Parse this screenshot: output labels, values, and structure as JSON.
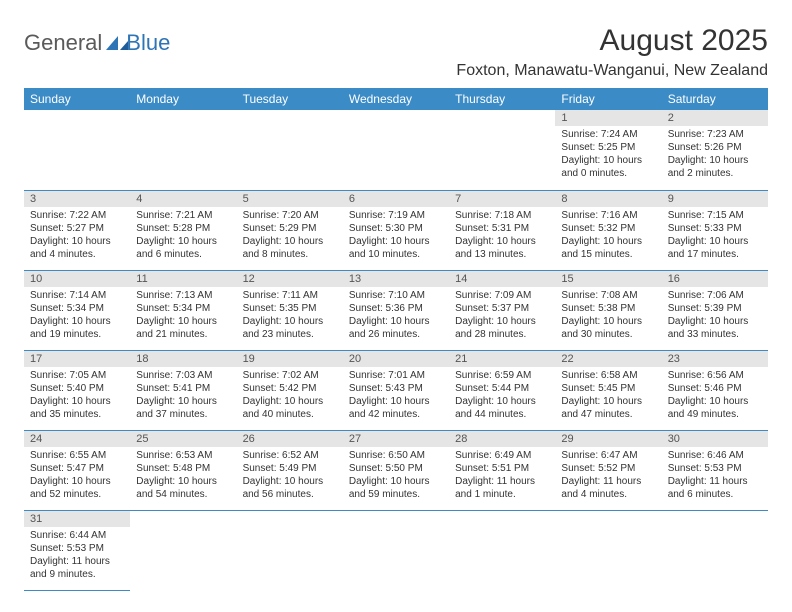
{
  "brand": {
    "part1": "General",
    "part2": "Blue"
  },
  "title": "August 2025",
  "location": "Foxton, Manawatu-Wanganui, New Zealand",
  "colors": {
    "header_bg": "#3b8bc7",
    "header_text": "#ffffff",
    "daynum_bg": "#e5e5e5",
    "rule": "#3b8bc7",
    "text": "#333333",
    "logo_gray": "#5a5a5a",
    "logo_blue": "#2e75b6"
  },
  "weekdays": [
    "Sunday",
    "Monday",
    "Tuesday",
    "Wednesday",
    "Thursday",
    "Friday",
    "Saturday"
  ],
  "weeks": [
    [
      null,
      null,
      null,
      null,
      null,
      {
        "n": "1",
        "sunrise": "Sunrise: 7:24 AM",
        "sunset": "Sunset: 5:25 PM",
        "daylight": "Daylight: 10 hours and 0 minutes."
      },
      {
        "n": "2",
        "sunrise": "Sunrise: 7:23 AM",
        "sunset": "Sunset: 5:26 PM",
        "daylight": "Daylight: 10 hours and 2 minutes."
      }
    ],
    [
      {
        "n": "3",
        "sunrise": "Sunrise: 7:22 AM",
        "sunset": "Sunset: 5:27 PM",
        "daylight": "Daylight: 10 hours and 4 minutes."
      },
      {
        "n": "4",
        "sunrise": "Sunrise: 7:21 AM",
        "sunset": "Sunset: 5:28 PM",
        "daylight": "Daylight: 10 hours and 6 minutes."
      },
      {
        "n": "5",
        "sunrise": "Sunrise: 7:20 AM",
        "sunset": "Sunset: 5:29 PM",
        "daylight": "Daylight: 10 hours and 8 minutes."
      },
      {
        "n": "6",
        "sunrise": "Sunrise: 7:19 AM",
        "sunset": "Sunset: 5:30 PM",
        "daylight": "Daylight: 10 hours and 10 minutes."
      },
      {
        "n": "7",
        "sunrise": "Sunrise: 7:18 AM",
        "sunset": "Sunset: 5:31 PM",
        "daylight": "Daylight: 10 hours and 13 minutes."
      },
      {
        "n": "8",
        "sunrise": "Sunrise: 7:16 AM",
        "sunset": "Sunset: 5:32 PM",
        "daylight": "Daylight: 10 hours and 15 minutes."
      },
      {
        "n": "9",
        "sunrise": "Sunrise: 7:15 AM",
        "sunset": "Sunset: 5:33 PM",
        "daylight": "Daylight: 10 hours and 17 minutes."
      }
    ],
    [
      {
        "n": "10",
        "sunrise": "Sunrise: 7:14 AM",
        "sunset": "Sunset: 5:34 PM",
        "daylight": "Daylight: 10 hours and 19 minutes."
      },
      {
        "n": "11",
        "sunrise": "Sunrise: 7:13 AM",
        "sunset": "Sunset: 5:34 PM",
        "daylight": "Daylight: 10 hours and 21 minutes."
      },
      {
        "n": "12",
        "sunrise": "Sunrise: 7:11 AM",
        "sunset": "Sunset: 5:35 PM",
        "daylight": "Daylight: 10 hours and 23 minutes."
      },
      {
        "n": "13",
        "sunrise": "Sunrise: 7:10 AM",
        "sunset": "Sunset: 5:36 PM",
        "daylight": "Daylight: 10 hours and 26 minutes."
      },
      {
        "n": "14",
        "sunrise": "Sunrise: 7:09 AM",
        "sunset": "Sunset: 5:37 PM",
        "daylight": "Daylight: 10 hours and 28 minutes."
      },
      {
        "n": "15",
        "sunrise": "Sunrise: 7:08 AM",
        "sunset": "Sunset: 5:38 PM",
        "daylight": "Daylight: 10 hours and 30 minutes."
      },
      {
        "n": "16",
        "sunrise": "Sunrise: 7:06 AM",
        "sunset": "Sunset: 5:39 PM",
        "daylight": "Daylight: 10 hours and 33 minutes."
      }
    ],
    [
      {
        "n": "17",
        "sunrise": "Sunrise: 7:05 AM",
        "sunset": "Sunset: 5:40 PM",
        "daylight": "Daylight: 10 hours and 35 minutes."
      },
      {
        "n": "18",
        "sunrise": "Sunrise: 7:03 AM",
        "sunset": "Sunset: 5:41 PM",
        "daylight": "Daylight: 10 hours and 37 minutes."
      },
      {
        "n": "19",
        "sunrise": "Sunrise: 7:02 AM",
        "sunset": "Sunset: 5:42 PM",
        "daylight": "Daylight: 10 hours and 40 minutes."
      },
      {
        "n": "20",
        "sunrise": "Sunrise: 7:01 AM",
        "sunset": "Sunset: 5:43 PM",
        "daylight": "Daylight: 10 hours and 42 minutes."
      },
      {
        "n": "21",
        "sunrise": "Sunrise: 6:59 AM",
        "sunset": "Sunset: 5:44 PM",
        "daylight": "Daylight: 10 hours and 44 minutes."
      },
      {
        "n": "22",
        "sunrise": "Sunrise: 6:58 AM",
        "sunset": "Sunset: 5:45 PM",
        "daylight": "Daylight: 10 hours and 47 minutes."
      },
      {
        "n": "23",
        "sunrise": "Sunrise: 6:56 AM",
        "sunset": "Sunset: 5:46 PM",
        "daylight": "Daylight: 10 hours and 49 minutes."
      }
    ],
    [
      {
        "n": "24",
        "sunrise": "Sunrise: 6:55 AM",
        "sunset": "Sunset: 5:47 PM",
        "daylight": "Daylight: 10 hours and 52 minutes."
      },
      {
        "n": "25",
        "sunrise": "Sunrise: 6:53 AM",
        "sunset": "Sunset: 5:48 PM",
        "daylight": "Daylight: 10 hours and 54 minutes."
      },
      {
        "n": "26",
        "sunrise": "Sunrise: 6:52 AM",
        "sunset": "Sunset: 5:49 PM",
        "daylight": "Daylight: 10 hours and 56 minutes."
      },
      {
        "n": "27",
        "sunrise": "Sunrise: 6:50 AM",
        "sunset": "Sunset: 5:50 PM",
        "daylight": "Daylight: 10 hours and 59 minutes."
      },
      {
        "n": "28",
        "sunrise": "Sunrise: 6:49 AM",
        "sunset": "Sunset: 5:51 PM",
        "daylight": "Daylight: 11 hours and 1 minute."
      },
      {
        "n": "29",
        "sunrise": "Sunrise: 6:47 AM",
        "sunset": "Sunset: 5:52 PM",
        "daylight": "Daylight: 11 hours and 4 minutes."
      },
      {
        "n": "30",
        "sunrise": "Sunrise: 6:46 AM",
        "sunset": "Sunset: 5:53 PM",
        "daylight": "Daylight: 11 hours and 6 minutes."
      }
    ],
    [
      {
        "n": "31",
        "sunrise": "Sunrise: 6:44 AM",
        "sunset": "Sunset: 5:53 PM",
        "daylight": "Daylight: 11 hours and 9 minutes."
      },
      null,
      null,
      null,
      null,
      null,
      null
    ]
  ]
}
